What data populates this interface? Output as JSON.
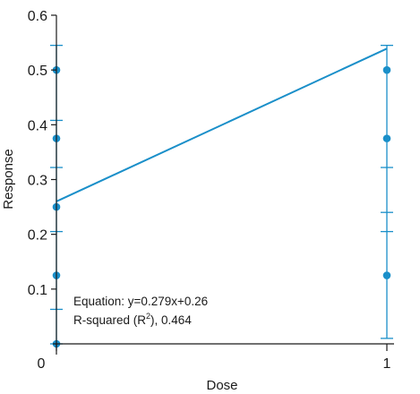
{
  "chart_data": {
    "type": "scatter",
    "xlabel": "Dose",
    "ylabel": "Response",
    "xlim": [
      0,
      1
    ],
    "ylim": [
      0,
      0.6
    ],
    "x_ticks": [
      0,
      1
    ],
    "y_ticks": [
      0.1,
      0.2,
      0.3,
      0.4,
      0.5,
      0.6
    ],
    "y_tick_labels": [
      "0.1",
      "0.2",
      "0.3",
      "0.4",
      "0.5",
      "0.6"
    ],
    "x_tick_labels": [
      "0",
      "1"
    ],
    "points": [
      {
        "x": 0,
        "y": 0.5
      },
      {
        "x": 0,
        "y": 0.375
      },
      {
        "x": 0,
        "y": 0.25
      },
      {
        "x": 0,
        "y": 0.125
      },
      {
        "x": 0,
        "y": 0.0
      },
      {
        "x": 1,
        "y": 0.5
      },
      {
        "x": 1,
        "y": 0.375
      },
      {
        "x": 1,
        "y": 0.125
      }
    ],
    "error_bars": [
      {
        "x": 0,
        "low": 0.0,
        "high": 0.545,
        "caps": [
          0.0,
          0.063,
          0.205,
          0.322,
          0.408,
          0.545
        ]
      },
      {
        "x": 1,
        "low": 0.01,
        "high": 0.545,
        "caps": [
          0.01,
          0.205,
          0.24,
          0.322,
          0.545
        ]
      }
    ],
    "fit_line": {
      "slope": 0.279,
      "intercept": 0.26
    },
    "annotations": {
      "equation": "Equation: y=0.279x+0.26",
      "r_squared_prefix": "R-squared (R",
      "r_squared_sup": "2",
      "r_squared_suffix": "), 0.464"
    },
    "colors": {
      "series": "#1a8fc9",
      "axis": "#1a1a1a"
    },
    "grid": false
  }
}
